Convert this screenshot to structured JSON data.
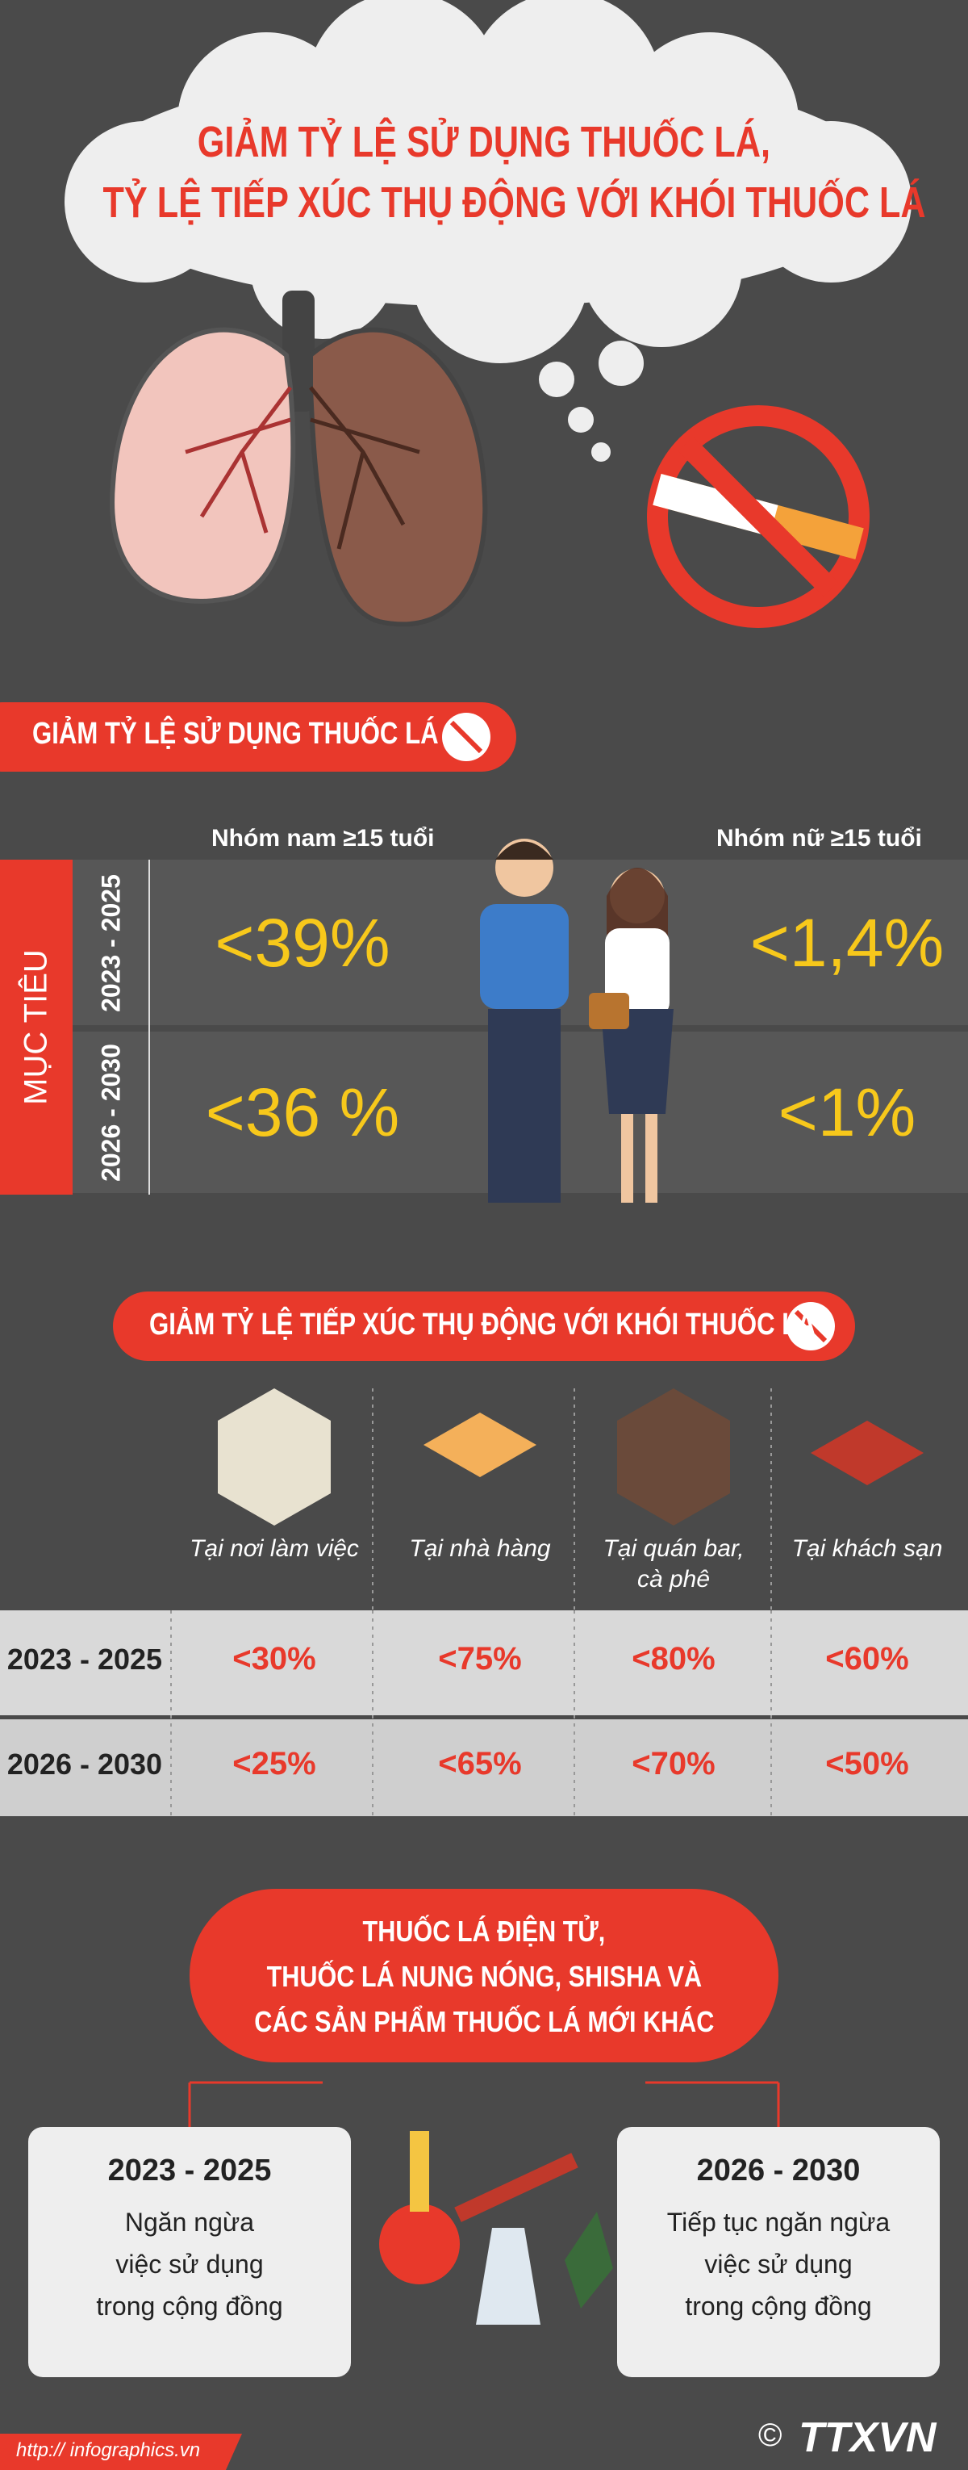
{
  "header": {
    "title_lines": [
      "GIẢM TỶ LỆ SỬ DỤNG THUỐC LÁ,",
      "TỶ LỆ TIẾP XÚC THỤ ĐỘNG VỚI KHÓI THUỐC LÁ"
    ]
  },
  "section_1": {
    "title": "GIẢM TỶ LỆ SỬ DỤNG THUỐC LÁ",
    "target_label": "MỤC TIÊU",
    "groups": [
      "Nhóm nam  ≥15 tuổi",
      "Nhóm nữ  ≥15 tuổi"
    ],
    "rows": [
      {
        "period": "2023 - 2025",
        "values": [
          "<39%",
          "<1,4%"
        ]
      },
      {
        "period": "2026 - 2030",
        "values": [
          "<36 %",
          "<1%"
        ]
      }
    ]
  },
  "section_2": {
    "title": "GIẢM TỶ LỆ TIẾP XÚC THỤ ĐỘNG VỚI KHÓI THUỐC LÁ",
    "places": [
      [
        "Tại nơi làm việc"
      ],
      [
        "Tại nhà hàng"
      ],
      [
        "Tại quán bar,",
        "cà phê"
      ],
      [
        "Tại khách sạn"
      ]
    ],
    "rows": [
      {
        "period": "2023 - 2025",
        "values": [
          "<30%",
          "<75%",
          "<80%",
          "<60%"
        ]
      },
      {
        "period": "2026 - 2030",
        "values": [
          "<25%",
          "<65%",
          "<70%",
          "<50%"
        ]
      }
    ]
  },
  "section_3": {
    "title_lines": [
      "THUỐC LÁ ĐIỆN TỬ,",
      "THUỐC LÁ NUNG NÓNG, SHISHA VÀ",
      "CÁC SẢN PHẨM THUỐC LÁ MỚI KHÁC"
    ],
    "phases": [
      {
        "period": "2023 - 2025",
        "text_lines": [
          "Ngăn ngừa",
          "việc sử dụng",
          "trong cộng đồng"
        ]
      },
      {
        "period": "2026 - 2030",
        "text_lines": [
          "Tiếp tục ngăn ngừa",
          "việc sử dụng",
          "trong cộng đồng"
        ]
      }
    ]
  },
  "footer": {
    "url": "http:// infographics.vn",
    "copyright": "©",
    "brand": "TTXVN"
  }
}
